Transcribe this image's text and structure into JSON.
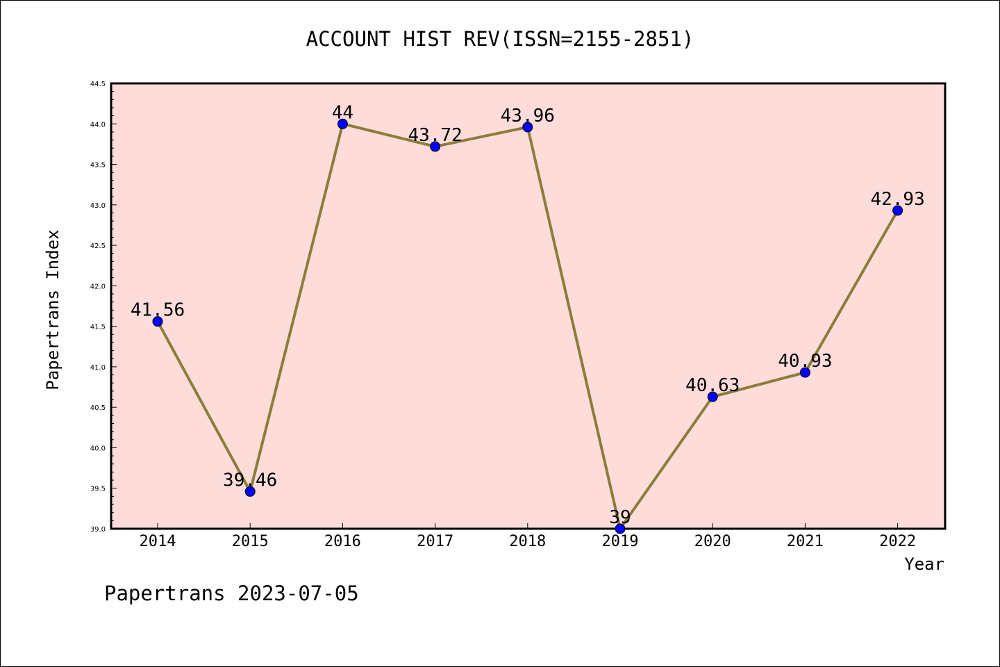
{
  "chart_data": {
    "type": "line",
    "title": "ACCOUNT HIST REV(ISSN=2155-2851)",
    "xlabel": "Year",
    "ylabel": "Papertrans Index",
    "footer": "Papertrans 2023-07-05",
    "categories": [
      "2014",
      "2015",
      "2016",
      "2017",
      "2018",
      "2019",
      "2020",
      "2021",
      "2022"
    ],
    "series": [
      {
        "values": [
          41.56,
          39.46,
          44,
          43.72,
          43.96,
          39,
          40.63,
          40.93,
          42.93
        ],
        "labels": [
          "41.56",
          "39.46",
          "44",
          "43.72",
          "43.96",
          "39",
          "40.63",
          "40.93",
          "42.93"
        ]
      }
    ],
    "ylim": [
      39.0,
      44.5
    ],
    "yticks": [
      "39.0",
      "39.5",
      "40.0",
      "40.5",
      "41.0",
      "41.5",
      "42.0",
      "42.5",
      "43.0",
      "43.5",
      "44.0",
      "44.5"
    ],
    "grid": false,
    "colors": {
      "plot_background": "#fddcda",
      "line": "#8b7d3a",
      "marker": "#0000ff"
    }
  }
}
